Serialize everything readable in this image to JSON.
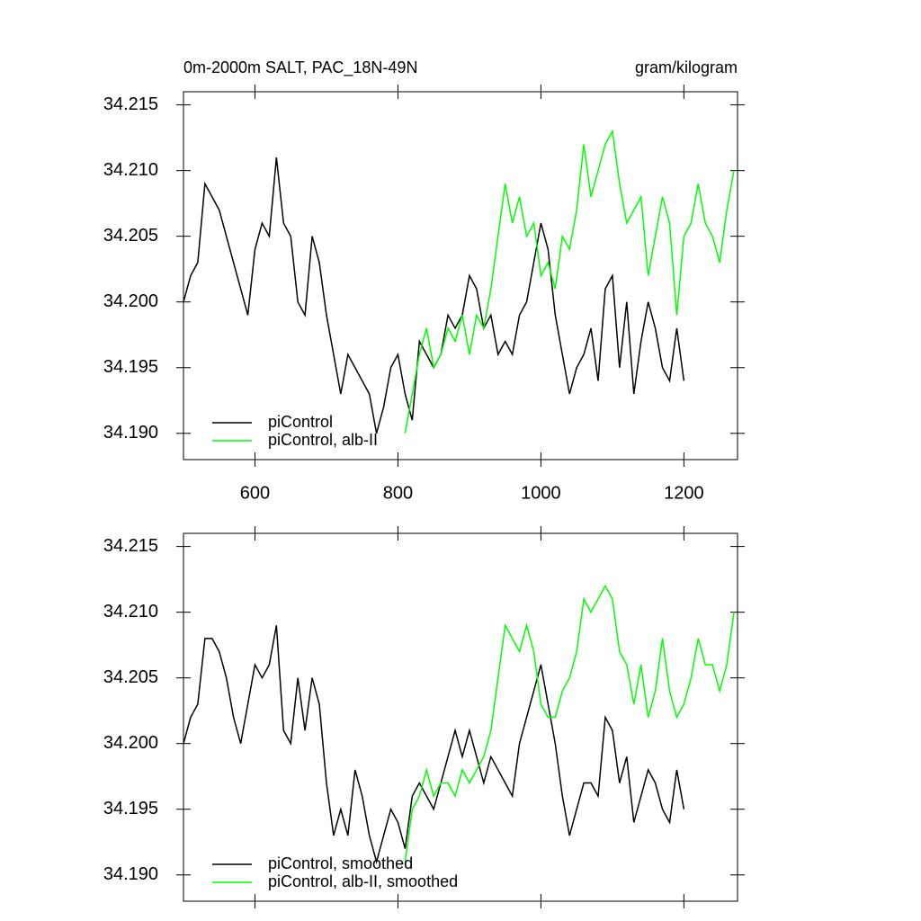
{
  "chart_data": [
    {
      "type": "line",
      "title": "0m-2000m SALT, PAC_18N-49N",
      "units": "gram/kilogram",
      "xlim": [
        500,
        1275
      ],
      "ylim": [
        34.188,
        34.216
      ],
      "xticks": [
        600,
        800,
        1000,
        1200
      ],
      "yticks": [
        {
          "value": 34.19,
          "label": "34.190"
        },
        34.195,
        {
          "value": 34.2,
          "label": "34.200"
        },
        34.205,
        {
          "value": 34.21,
          "label": "34.210"
        },
        34.215
      ],
      "legend": "lower left",
      "series": [
        {
          "name": "piControl",
          "color": "#000000",
          "x": [
            500,
            510,
            520,
            530,
            540,
            550,
            560,
            570,
            580,
            590,
            600,
            610,
            620,
            630,
            640,
            650,
            660,
            670,
            680,
            690,
            700,
            710,
            720,
            730,
            740,
            750,
            760,
            770,
            780,
            790,
            800,
            810,
            820,
            830,
            840,
            850,
            860,
            870,
            880,
            890,
            900,
            910,
            920,
            930,
            940,
            950,
            960,
            970,
            980,
            990,
            1000,
            1010,
            1020,
            1030,
            1040,
            1050,
            1060,
            1070,
            1080,
            1090,
            1100,
            1110,
            1120,
            1130,
            1140,
            1150,
            1160,
            1170,
            1180,
            1190,
            1200
          ],
          "values": [
            34.2,
            34.202,
            34.203,
            34.209,
            34.208,
            34.207,
            34.205,
            34.203,
            34.201,
            34.199,
            34.204,
            34.206,
            34.205,
            34.211,
            34.206,
            34.205,
            34.2,
            34.199,
            34.205,
            34.203,
            34.199,
            34.196,
            34.193,
            34.196,
            34.195,
            34.194,
            34.193,
            34.19,
            34.192,
            34.195,
            34.196,
            34.193,
            34.191,
            34.197,
            34.196,
            34.195,
            34.196,
            34.199,
            34.198,
            34.199,
            34.202,
            34.201,
            34.198,
            34.199,
            34.196,
            34.197,
            34.196,
            34.199,
            34.2,
            34.203,
            34.206,
            34.204,
            34.199,
            34.196,
            34.193,
            34.195,
            34.196,
            34.198,
            34.194,
            34.201,
            34.202,
            34.195,
            34.2,
            34.193,
            34.197,
            34.2,
            34.198,
            34.195,
            34.194,
            34.198,
            34.194
          ]
        },
        {
          "name": "piControl, alb-II",
          "color": "#00ff00",
          "x": [
            810,
            820,
            830,
            840,
            850,
            860,
            870,
            880,
            890,
            900,
            910,
            920,
            930,
            940,
            950,
            960,
            970,
            980,
            990,
            1000,
            1010,
            1020,
            1030,
            1040,
            1050,
            1060,
            1070,
            1080,
            1090,
            1100,
            1110,
            1120,
            1130,
            1140,
            1150,
            1160,
            1170,
            1180,
            1190,
            1200,
            1210,
            1220,
            1230,
            1240,
            1250,
            1260,
            1270
          ],
          "values": [
            34.19,
            34.193,
            34.196,
            34.198,
            34.195,
            34.196,
            34.198,
            34.197,
            34.199,
            34.196,
            34.199,
            34.198,
            34.201,
            34.205,
            34.209,
            34.206,
            34.208,
            34.205,
            34.206,
            34.202,
            34.203,
            34.201,
            34.205,
            34.204,
            34.207,
            34.212,
            34.208,
            34.21,
            34.212,
            34.213,
            34.209,
            34.206,
            34.207,
            34.208,
            34.202,
            34.205,
            34.208,
            34.206,
            34.199,
            34.205,
            34.206,
            34.209,
            34.206,
            34.205,
            34.203,
            34.207,
            34.21
          ]
        }
      ]
    },
    {
      "type": "line",
      "xlim": [
        500,
        1275
      ],
      "ylim": [
        34.188,
        34.216
      ],
      "yticks": [
        {
          "value": 34.19,
          "label": "34.190"
        },
        34.195,
        {
          "value": 34.2,
          "label": "34.200"
        },
        34.205,
        {
          "value": 34.21,
          "label": "34.210"
        },
        34.215
      ],
      "legend": "lower left",
      "series": [
        {
          "name": "piControl, smoothed",
          "color": "#000000",
          "x": [
            500,
            510,
            520,
            530,
            540,
            550,
            560,
            570,
            580,
            590,
            600,
            610,
            620,
            630,
            640,
            650,
            660,
            670,
            680,
            690,
            700,
            710,
            720,
            730,
            740,
            750,
            760,
            770,
            780,
            790,
            800,
            810,
            820,
            830,
            840,
            850,
            860,
            870,
            880,
            890,
            900,
            910,
            920,
            930,
            940,
            950,
            960,
            970,
            980,
            990,
            1000,
            1010,
            1020,
            1030,
            1040,
            1050,
            1060,
            1070,
            1080,
            1090,
            1100,
            1110,
            1120,
            1130,
            1140,
            1150,
            1160,
            1170,
            1180,
            1190,
            1200
          ],
          "values": [
            34.2,
            34.202,
            34.203,
            34.208,
            34.208,
            34.207,
            34.205,
            34.202,
            34.2,
            34.203,
            34.206,
            34.205,
            34.206,
            34.209,
            34.201,
            34.2,
            34.205,
            34.201,
            34.205,
            34.203,
            34.197,
            34.193,
            34.195,
            34.193,
            34.198,
            34.196,
            34.193,
            34.191,
            34.193,
            34.195,
            34.194,
            34.192,
            34.196,
            34.197,
            34.196,
            34.195,
            34.197,
            34.199,
            34.201,
            34.199,
            34.201,
            34.199,
            34.197,
            34.199,
            34.198,
            34.197,
            34.196,
            34.2,
            34.202,
            34.204,
            34.206,
            34.203,
            34.2,
            34.196,
            34.193,
            34.195,
            34.197,
            34.197,
            34.196,
            34.202,
            34.201,
            34.197,
            34.199,
            34.194,
            34.196,
            34.198,
            34.197,
            34.195,
            34.194,
            34.198,
            34.195
          ]
        },
        {
          "name": "piControl, alb-II, smoothed",
          "color": "#00ff00",
          "x": [
            810,
            820,
            830,
            840,
            850,
            860,
            870,
            880,
            890,
            900,
            910,
            920,
            930,
            940,
            950,
            960,
            970,
            980,
            990,
            1000,
            1010,
            1020,
            1030,
            1040,
            1050,
            1060,
            1070,
            1080,
            1090,
            1100,
            1110,
            1120,
            1130,
            1140,
            1150,
            1160,
            1170,
            1180,
            1190,
            1200,
            1210,
            1220,
            1230,
            1240,
            1250,
            1260,
            1270
          ],
          "values": [
            34.191,
            34.195,
            34.196,
            34.198,
            34.196,
            34.197,
            34.197,
            34.196,
            34.198,
            34.197,
            34.198,
            34.199,
            34.201,
            34.205,
            34.209,
            34.208,
            34.207,
            34.209,
            34.207,
            34.203,
            34.202,
            34.202,
            34.204,
            34.205,
            34.207,
            34.211,
            34.21,
            34.211,
            34.212,
            34.211,
            34.207,
            34.206,
            34.203,
            34.206,
            34.202,
            34.204,
            34.208,
            34.204,
            34.202,
            34.203,
            34.205,
            34.208,
            34.206,
            34.206,
            34.204,
            34.206,
            34.21
          ]
        }
      ]
    }
  ]
}
